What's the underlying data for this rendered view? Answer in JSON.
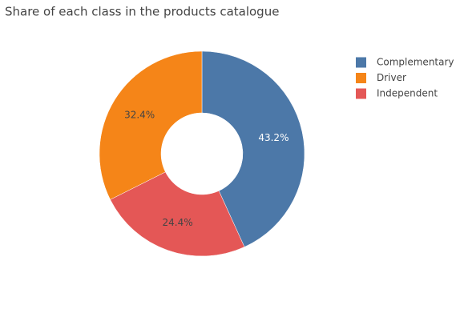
{
  "chart_data": {
    "type": "donut",
    "title": "Share of each class in the products catalogue",
    "categories": [
      "Complementary",
      "Driver",
      "Independent"
    ],
    "values": [
      43.2,
      32.4,
      24.4
    ],
    "value_labels": [
      "43.2%",
      "32.4%",
      "24.4%"
    ],
    "colors": [
      "#4c78a8",
      "#f58518",
      "#e45756"
    ],
    "legend": "top-right"
  }
}
